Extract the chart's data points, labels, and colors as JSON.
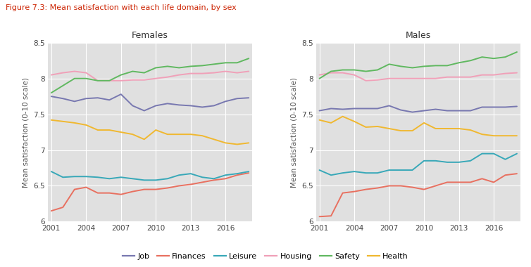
{
  "title": "Figure 7.3: Mean satisfaction with each life domain, by sex",
  "title_color": "#cc2200",
  "subplot_titles": [
    "Females",
    "Males"
  ],
  "ylabel": "Mean satisfaction (0-10 scale)",
  "years": [
    2001,
    2002,
    2003,
    2004,
    2005,
    2006,
    2007,
    2008,
    2009,
    2010,
    2011,
    2012,
    2013,
    2014,
    2015,
    2016,
    2017,
    2018
  ],
  "xticks": [
    2001,
    2004,
    2007,
    2010,
    2013,
    2016
  ],
  "ylim": [
    6.0,
    8.5
  ],
  "yticks": [
    6.0,
    6.5,
    7.0,
    7.5,
    8.0,
    8.5
  ],
  "ytick_labels": [
    "6",
    "6.5",
    "7",
    "7.5",
    "8",
    "8.5"
  ],
  "series": {
    "Job": {
      "color": "#7878b0",
      "females": [
        7.75,
        7.72,
        7.68,
        7.72,
        7.73,
        7.7,
        7.78,
        7.62,
        7.55,
        7.62,
        7.65,
        7.63,
        7.62,
        7.6,
        7.62,
        7.68,
        7.72,
        7.73
      ],
      "males": [
        7.55,
        7.58,
        7.57,
        7.58,
        7.58,
        7.58,
        7.62,
        7.56,
        7.53,
        7.55,
        7.57,
        7.55,
        7.55,
        7.55,
        7.6,
        7.6,
        7.6,
        7.61
      ]
    },
    "Finances": {
      "color": "#e87060",
      "females": [
        6.15,
        6.2,
        6.45,
        6.48,
        6.4,
        6.4,
        6.38,
        6.42,
        6.45,
        6.45,
        6.47,
        6.5,
        6.52,
        6.55,
        6.58,
        6.6,
        6.65,
        6.68
      ],
      "males": [
        6.07,
        6.08,
        6.4,
        6.42,
        6.45,
        6.47,
        6.5,
        6.5,
        6.48,
        6.45,
        6.5,
        6.55,
        6.55,
        6.55,
        6.6,
        6.55,
        6.65,
        6.67
      ]
    },
    "Leisure": {
      "color": "#38a8b8",
      "females": [
        6.7,
        6.62,
        6.63,
        6.63,
        6.62,
        6.6,
        6.62,
        6.6,
        6.58,
        6.58,
        6.6,
        6.65,
        6.67,
        6.62,
        6.6,
        6.65,
        6.67,
        6.7
      ],
      "males": [
        6.72,
        6.65,
        6.68,
        6.7,
        6.68,
        6.68,
        6.72,
        6.72,
        6.72,
        6.85,
        6.85,
        6.83,
        6.83,
        6.85,
        6.95,
        6.95,
        6.87,
        6.95
      ]
    },
    "Housing": {
      "color": "#f0a0b8",
      "females": [
        8.05,
        8.08,
        8.1,
        8.08,
        7.97,
        7.97,
        7.97,
        7.98,
        7.98,
        8.0,
        8.02,
        8.05,
        8.07,
        8.07,
        8.08,
        8.1,
        8.08,
        8.1
      ],
      "males": [
        8.05,
        8.08,
        8.08,
        8.05,
        7.97,
        7.98,
        8.0,
        8.0,
        8.0,
        8.0,
        8.0,
        8.02,
        8.02,
        8.02,
        8.05,
        8.05,
        8.07,
        8.08
      ]
    },
    "Safety": {
      "color": "#60b860",
      "females": [
        7.8,
        7.9,
        8.0,
        8.0,
        7.97,
        7.97,
        8.05,
        8.1,
        8.08,
        8.15,
        8.17,
        8.15,
        8.17,
        8.18,
        8.2,
        8.22,
        8.22,
        8.28
      ],
      "males": [
        8.0,
        8.1,
        8.12,
        8.12,
        8.1,
        8.12,
        8.2,
        8.17,
        8.15,
        8.17,
        8.18,
        8.18,
        8.22,
        8.25,
        8.3,
        8.28,
        8.3,
        8.37
      ]
    },
    "Health": {
      "color": "#f0b830",
      "females": [
        7.42,
        7.4,
        7.38,
        7.35,
        7.28,
        7.28,
        7.25,
        7.22,
        7.15,
        7.28,
        7.22,
        7.22,
        7.22,
        7.2,
        7.15,
        7.1,
        7.08,
        7.1
      ],
      "males": [
        7.42,
        7.38,
        7.47,
        7.4,
        7.32,
        7.33,
        7.3,
        7.27,
        7.27,
        7.38,
        7.3,
        7.3,
        7.3,
        7.28,
        7.22,
        7.2,
        7.2,
        7.2
      ]
    }
  },
  "legend_order": [
    "Job",
    "Finances",
    "Leisure",
    "Housing",
    "Safety",
    "Health"
  ],
  "plot_bg": "#e0e0e0",
  "fig_bg": "#ffffff",
  "linewidth": 1.4
}
